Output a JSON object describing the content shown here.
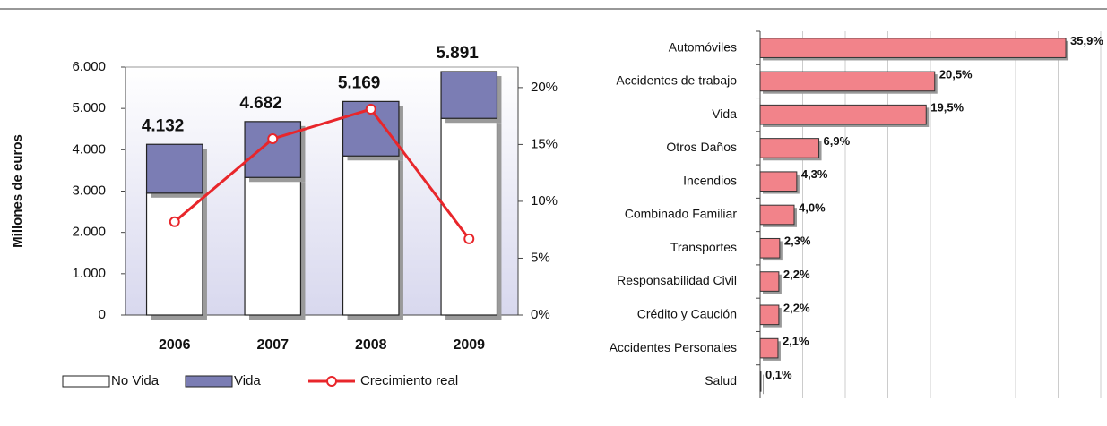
{
  "chart_data": [
    {
      "type": "bar",
      "stacked": true,
      "ylabel": "Millones de euros",
      "categories": [
        "2006",
        "2007",
        "2008",
        "2009"
      ],
      "series": [
        {
          "name": "No Vida",
          "color": "#ffffff",
          "values": [
            2950,
            3330,
            3850,
            4760
          ]
        },
        {
          "name": "Vida",
          "color": "#7b7db4",
          "values": [
            1182,
            1352,
            1319,
            1131
          ]
        },
        {
          "name": "Crecimiento real",
          "color": "#e8262b",
          "type": "line",
          "axis": "y2",
          "values": [
            8.2,
            15.5,
            18.1,
            6.7
          ]
        }
      ],
      "annotations": [
        "4.132",
        "4.682",
        "5.169",
        "5.891"
      ],
      "ylim": [
        0,
        6000
      ],
      "yticks": [
        0,
        {
          "value": 1000,
          "label": "1.000"
        },
        {
          "value": 2000,
          "label": "2.000"
        },
        {
          "value": 3000,
          "label": "3.000"
        },
        {
          "value": 4000,
          "label": "4.000"
        },
        {
          "value": 5000,
          "label": "5.000"
        },
        {
          "value": 6000,
          "label": "6.000"
        }
      ],
      "y2lim": [
        0,
        21.8
      ],
      "y2ticks": [
        {
          "value": 0,
          "label": "0%"
        },
        {
          "value": 5,
          "label": "5%"
        },
        {
          "value": 10,
          "label": "10%"
        },
        {
          "value": 15,
          "label": "15%"
        },
        {
          "value": 20,
          "label": "20%"
        }
      ],
      "legend": "bottom"
    },
    {
      "type": "hbar",
      "categories": [
        "Automóviles",
        "Accidentes de trabajo",
        "Vida",
        "Otros Daños",
        "Incendios",
        "Combinado Familiar",
        "Transportes",
        "Responsabilidad Civil",
        "Crédito y Caución",
        "Accidentes Personales",
        "Salud"
      ],
      "values": [
        35.9,
        20.5,
        19.5,
        6.9,
        4.3,
        4.0,
        2.3,
        2.2,
        2.2,
        2.1,
        0.1
      ],
      "value_labels": [
        "35,9%",
        "20,5%",
        "19,5%",
        "6,9%",
        "4,3%",
        "4,0%",
        "2,3%",
        "2,2%",
        "2,2%",
        "2,1%",
        "0,1%"
      ],
      "color": "#f2838a",
      "xlim": [
        0,
        40
      ],
      "xticks": [
        0,
        5,
        10,
        15,
        20,
        25,
        30,
        35,
        40
      ],
      "grid": true
    }
  ]
}
